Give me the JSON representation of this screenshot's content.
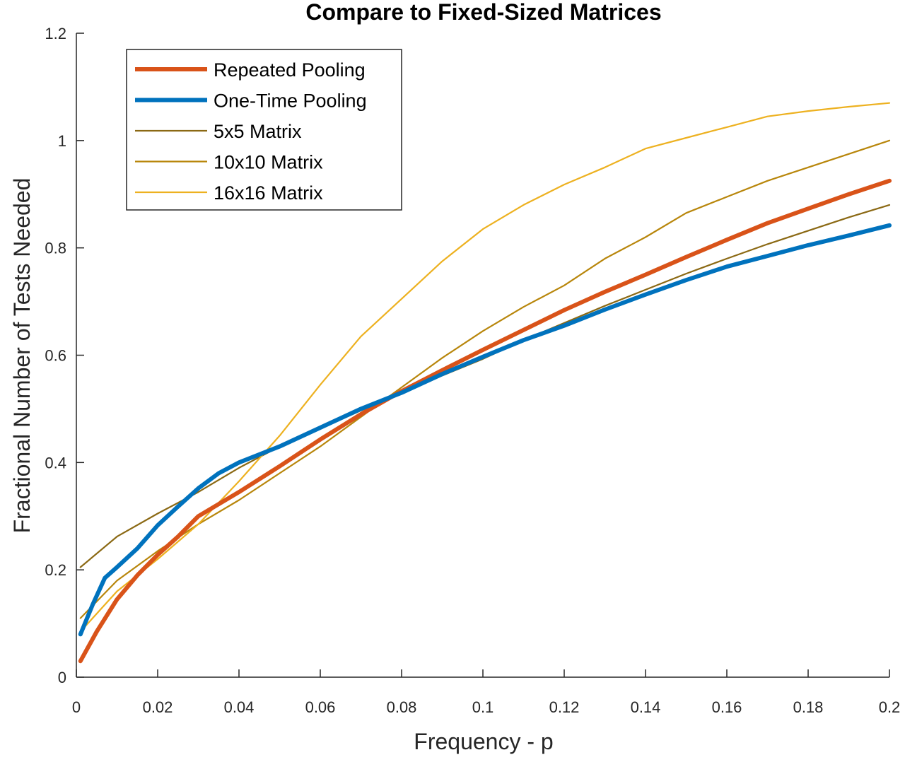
{
  "chart_data": {
    "type": "line",
    "title": "Compare to Fixed-Sized Matrices",
    "xlabel": "Frequency - p",
    "ylabel": "Fractional Number of Tests Needed",
    "xlim": [
      0,
      0.2
    ],
    "ylim": [
      0,
      1.2
    ],
    "xticks": [
      0,
      0.02,
      0.04,
      0.06,
      0.08,
      0.1,
      0.12,
      0.14,
      0.16,
      0.18,
      0.2
    ],
    "xtick_labels": [
      "0",
      "0.02",
      "0.04",
      "0.06",
      "0.08",
      "0.1",
      "0.12",
      "0.14",
      "0.16",
      "0.18",
      "0.2"
    ],
    "yticks": [
      0,
      0.2,
      0.4,
      0.6,
      0.8,
      1,
      1.2
    ],
    "ytick_labels": [
      "0",
      "0.2",
      "0.4",
      "0.6",
      "0.8",
      "1",
      "1.2"
    ],
    "grid": false,
    "legend_position": "top-left",
    "series": [
      {
        "name": "Repeated Pooling",
        "color": "#D95319",
        "line_weight": "thick",
        "x": [
          0.001,
          0.005,
          0.01,
          0.015,
          0.02,
          0.025,
          0.03,
          0.04,
          0.05,
          0.06,
          0.07,
          0.08,
          0.09,
          0.1,
          0.11,
          0.12,
          0.13,
          0.14,
          0.15,
          0.16,
          0.17,
          0.18,
          0.19,
          0.2
        ],
        "y": [
          0.03,
          0.085,
          0.145,
          0.19,
          0.228,
          0.262,
          0.3,
          0.345,
          0.393,
          0.443,
          0.49,
          0.533,
          0.572,
          0.61,
          0.647,
          0.684,
          0.718,
          0.75,
          0.783,
          0.815,
          0.846,
          0.873,
          0.9,
          0.925
        ]
      },
      {
        "name": "One-Time Pooling",
        "color": "#0072BD",
        "line_weight": "thick",
        "x": [
          0.001,
          0.004,
          0.007,
          0.01,
          0.015,
          0.02,
          0.025,
          0.03,
          0.035,
          0.04,
          0.045,
          0.05,
          0.06,
          0.07,
          0.08,
          0.09,
          0.1,
          0.11,
          0.12,
          0.13,
          0.14,
          0.15,
          0.16,
          0.17,
          0.18,
          0.19,
          0.2
        ],
        "y": [
          0.08,
          0.135,
          0.185,
          0.205,
          0.24,
          0.283,
          0.318,
          0.352,
          0.38,
          0.4,
          0.415,
          0.43,
          0.465,
          0.5,
          0.53,
          0.565,
          0.597,
          0.628,
          0.655,
          0.685,
          0.713,
          0.74,
          0.765,
          0.785,
          0.805,
          0.823,
          0.842
        ]
      },
      {
        "name": "5x5 Matrix",
        "color": "#8B6914",
        "line_weight": "thin",
        "x": [
          0.001,
          0.01,
          0.02,
          0.03,
          0.04,
          0.05,
          0.06,
          0.07,
          0.08,
          0.09,
          0.1,
          0.11,
          0.12,
          0.13,
          0.14,
          0.15,
          0.16,
          0.17,
          0.18,
          0.19,
          0.2
        ],
        "y": [
          0.205,
          0.262,
          0.305,
          0.345,
          0.39,
          0.43,
          0.463,
          0.497,
          0.528,
          0.562,
          0.593,
          0.628,
          0.66,
          0.692,
          0.722,
          0.752,
          0.78,
          0.807,
          0.832,
          0.857,
          0.88
        ]
      },
      {
        "name": "10x10 Matrix",
        "color": "#B8860B",
        "line_weight": "thin",
        "x": [
          0.001,
          0.01,
          0.02,
          0.03,
          0.04,
          0.05,
          0.06,
          0.07,
          0.08,
          0.09,
          0.1,
          0.11,
          0.12,
          0.13,
          0.14,
          0.15,
          0.16,
          0.17,
          0.18,
          0.19,
          0.2
        ],
        "y": [
          0.11,
          0.18,
          0.235,
          0.285,
          0.33,
          0.38,
          0.43,
          0.485,
          0.54,
          0.595,
          0.645,
          0.69,
          0.73,
          0.78,
          0.82,
          0.865,
          0.895,
          0.925,
          0.95,
          0.975,
          1.0
        ]
      },
      {
        "name": "16x16 Matrix",
        "color": "#EDB120",
        "line_weight": "thin",
        "x": [
          0.001,
          0.01,
          0.02,
          0.03,
          0.04,
          0.05,
          0.06,
          0.07,
          0.08,
          0.09,
          0.1,
          0.11,
          0.12,
          0.13,
          0.14,
          0.15,
          0.16,
          0.17,
          0.18,
          0.19,
          0.2
        ],
        "y": [
          0.085,
          0.16,
          0.22,
          0.285,
          0.365,
          0.45,
          0.545,
          0.635,
          0.705,
          0.775,
          0.835,
          0.88,
          0.918,
          0.95,
          0.985,
          1.005,
          1.025,
          1.045,
          1.055,
          1.063,
          1.07
        ]
      }
    ]
  }
}
